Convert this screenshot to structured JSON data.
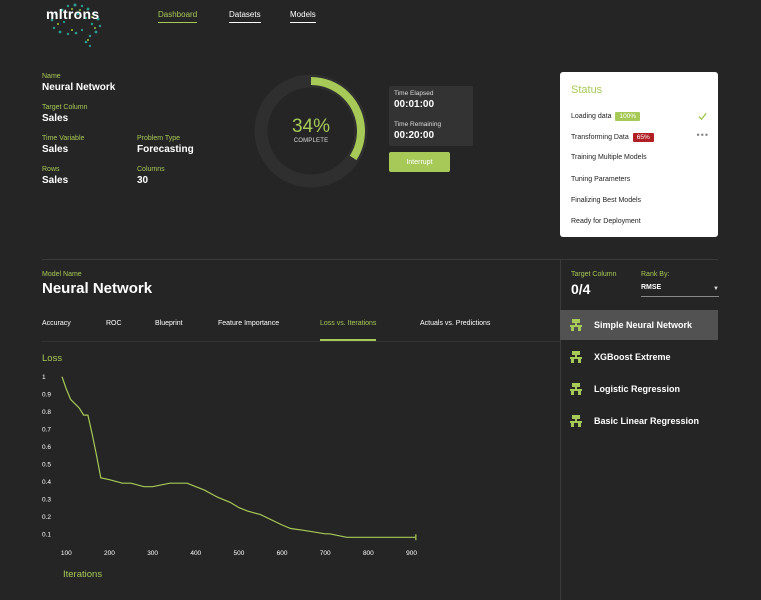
{
  "brand": {
    "logo_text": "mltrons"
  },
  "nav": [
    {
      "label": "Dashboard",
      "active": true
    },
    {
      "label": "Datasets",
      "active": false
    },
    {
      "label": "Models",
      "active": false
    }
  ],
  "info": {
    "name_label": "Name",
    "name_value": "Neural Network",
    "target_label": "Target Column",
    "target_value": "Sales",
    "time_var_label": "Time Variable",
    "time_var_value": "Sales",
    "problem_label": "Problem Type",
    "problem_value": "Forecasting",
    "rows_label": "Rows",
    "rows_value": "Sales",
    "columns_label": "Columns",
    "columns_value": "30"
  },
  "progress": {
    "percent_text": "34%",
    "percent": 34,
    "sub": "COMPLETE"
  },
  "timing": {
    "elapsed_label": "Time Elapsed",
    "elapsed_value": "00:01:00",
    "remaining_label": "Time Remaining",
    "remaining_value": "00:20:00",
    "interrupt_label": "Interrupt"
  },
  "status": {
    "title": "Status",
    "items": [
      {
        "label": "Loading data",
        "badge": "100%",
        "state": "done"
      },
      {
        "label": "Transforming Data",
        "badge": "65%",
        "state": "running"
      },
      {
        "label": "Training Multiple Models"
      },
      {
        "label": "Tuning Parameters"
      },
      {
        "label": "Finalizing Best Models"
      },
      {
        "label": "Ready for Deployment"
      }
    ],
    "more_glyph": "•••"
  },
  "model": {
    "label": "Model Name",
    "name": "Neural Network",
    "tabs": [
      "Accuracy",
      "ROC",
      "Blueprint",
      "Feature Importance",
      "Loss vs. Iterations",
      "Actuals vs. Predictions"
    ],
    "active_tab": "Loss vs. Iterations"
  },
  "right_panel": {
    "target_label": "Target Column",
    "target_value": "0/4",
    "rank_label": "Rank By:",
    "rank_value": "RMSE",
    "rank_arrow": "▼",
    "models": [
      {
        "label": "Simple Neural Network",
        "selected": true
      },
      {
        "label": "XGBoost Extreme",
        "selected": false
      },
      {
        "label": "Logistic Regression",
        "selected": false
      },
      {
        "label": "Basic Linear Regression",
        "selected": false
      }
    ],
    "model_icon": "tree-icon"
  },
  "chart_data": {
    "type": "line",
    "ylabel": "Loss",
    "xlabel": "Iterations",
    "x_ticks": [
      100,
      200,
      300,
      400,
      500,
      600,
      700,
      800,
      900
    ],
    "y_ticks": [
      1,
      0.9,
      0.8,
      0.7,
      0.6,
      0.5,
      0.4,
      0.3,
      0.2,
      0.1
    ],
    "xlim": [
      90,
      915
    ],
    "ylim": [
      0.07,
      1.01
    ],
    "series": [
      {
        "x": [
          90,
          100,
          110,
          130,
          140,
          150,
          160,
          170,
          180,
          200,
          230,
          250,
          280,
          300,
          320,
          340,
          360,
          380,
          400,
          420,
          450,
          480,
          500,
          520,
          550,
          600,
          620,
          650,
          700,
          710,
          750,
          800,
          850,
          910
        ],
        "y": [
          1.0,
          0.93,
          0.87,
          0.82,
          0.78,
          0.78,
          0.67,
          0.55,
          0.42,
          0.41,
          0.39,
          0.39,
          0.37,
          0.37,
          0.38,
          0.39,
          0.39,
          0.39,
          0.37,
          0.35,
          0.31,
          0.28,
          0.25,
          0.23,
          0.21,
          0.15,
          0.13,
          0.12,
          0.1,
          0.1,
          0.08,
          0.08,
          0.08,
          0.08
        ]
      }
    ],
    "line_color": "#a7c957"
  },
  "colors": {
    "accent": "#a7c957",
    "alert": "#b01f24",
    "background": "#252525"
  }
}
